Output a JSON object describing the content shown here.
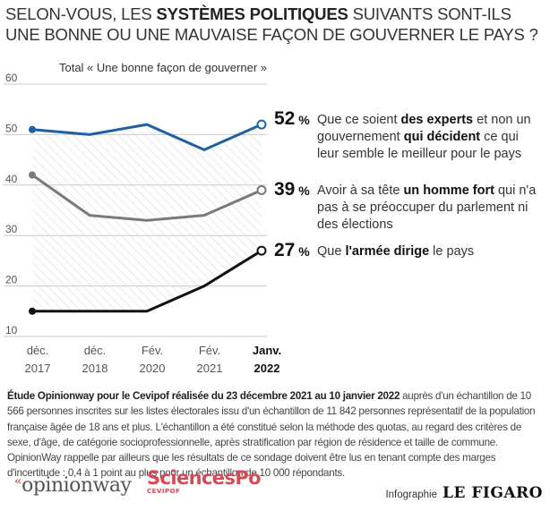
{
  "title": {
    "part1": "SELON-VOUS, LES ",
    "bold": "SYSTÈMES POLITIQUES",
    "part2": " SUIVANTS SONT-ILS",
    "line2": "UNE BONNE OU UNE MAUVAISE FAÇON DE GOUVERNER LE PAYS ?"
  },
  "chart_data": {
    "type": "line",
    "subtitle": "Total « Une bonne façon de gouverner »",
    "y_ticks": [
      "60",
      "50",
      "40",
      "30",
      "20",
      "10"
    ],
    "ylim": [
      10,
      60
    ],
    "categories": [
      {
        "top": "déc.",
        "bottom": "2017"
      },
      {
        "top": "déc.",
        "bottom": "2018"
      },
      {
        "top": "Fév.",
        "bottom": "2020"
      },
      {
        "top": "Fév.",
        "bottom": "2021"
      },
      {
        "top": "Janv.",
        "bottom": "2022"
      }
    ],
    "series": [
      {
        "values": [
          51,
          50,
          52,
          47,
          52
        ],
        "color": "#1f5fa3",
        "label": "52",
        "unit": " %",
        "desc_pre": "Que ce soient ",
        "desc_bold1": "des experts",
        "desc_mid": " et non un gouvernement ",
        "desc_bold2": "qui décident",
        "desc_post": " ce qui leur semble le meilleur pour le pays"
      },
      {
        "values": [
          42,
          34,
          33,
          34,
          39
        ],
        "color": "#7a7a7a",
        "label": "39",
        "unit": " %",
        "desc_pre": "Avoir à sa tête ",
        "desc_bold1": "un homme fort",
        "desc_mid": " qui n'a pas à se préoccuper du parlement ni des élections",
        "desc_bold2": "",
        "desc_post": ""
      },
      {
        "values": [
          15,
          15,
          15,
          20,
          27
        ],
        "color": "#111111",
        "label": "27",
        "unit": " %",
        "desc_pre": "Que ",
        "desc_bold1": "l'armée dirige",
        "desc_mid": " le pays",
        "desc_bold2": "",
        "desc_post": ""
      }
    ]
  },
  "note": {
    "bold": "Étude Opinionway pour le Cevipof réalisée du 23 décembre 2021 au 10 janvier 2022",
    "text": " auprès d'un échantillon de 10 566 personnes inscrites sur les listes électorales issu d'un échantillon de 11 842 personnes représentatif de la population française âgée de 18 ans et plus. L'échantillon a été constitué selon la méthode des quotas, au regard des critères de sexe, d'âge, de catégorie socioprofessionnelle, après stratification par région de résidence et taille de commune. OpinionWay rappelle par ailleurs que les résultats de ce sondage doivent être lus en tenant compte des marges d'incertitude : 0,4 à 1 point au plus pour un échantillon de 10 000 répondants."
  },
  "logos": {
    "opinionway": "opinionway",
    "opinionway_mark": "«",
    "sciencespo": "SciencesPo",
    "sciencespo_sub": "CEVIPOF"
  },
  "credit": {
    "label": "Infographie",
    "brand": "LE FIGARO"
  }
}
